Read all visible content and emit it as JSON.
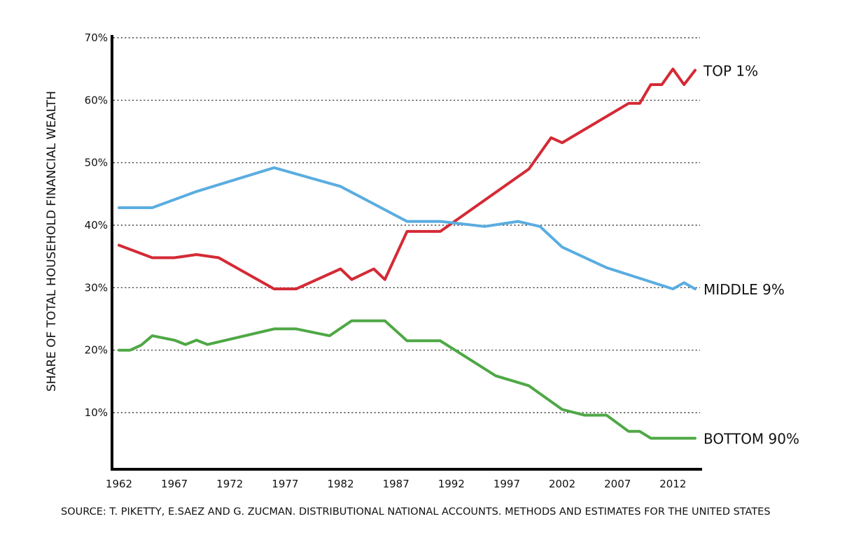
{
  "chart_data": {
    "type": "line",
    "title": "",
    "xlabel": "",
    "ylabel": "SHARE OF TOTAL HOUSEHOLD FINANCIAL WEALTH",
    "ylim": [
      0,
      70
    ],
    "xlim": [
      1962,
      2014
    ],
    "grid": true,
    "legend": "end-of-line labels",
    "y_ticks": [
      10,
      20,
      30,
      40,
      50,
      60,
      70
    ],
    "y_tick_labels": [
      "10%",
      "20%",
      "30%",
      "40%",
      "50%",
      "60%",
      "70%"
    ],
    "x_ticks": [
      1962,
      1967,
      1972,
      1977,
      1982,
      1987,
      1992,
      1997,
      2002,
      2007,
      2012
    ],
    "x_tick_labels": [
      "1962",
      "1967",
      "1972",
      "1977",
      "1982",
      "1987",
      "1992",
      "1997",
      "2002",
      "2007",
      "2012"
    ],
    "series": [
      {
        "name": "TOP 1%",
        "color": "#d42a35",
        "points": [
          [
            1962,
            36.8
          ],
          [
            1965,
            34.8
          ],
          [
            1967,
            34.8
          ],
          [
            1969,
            35.3
          ],
          [
            1971,
            34.8
          ],
          [
            1976,
            29.8
          ],
          [
            1978,
            29.8
          ],
          [
            1982,
            33.0
          ],
          [
            1983,
            31.3
          ],
          [
            1985,
            33.0
          ],
          [
            1986,
            31.3
          ],
          [
            1988,
            39.0
          ],
          [
            1991,
            39.0
          ],
          [
            1999,
            49.0
          ],
          [
            2001,
            54.0
          ],
          [
            2002,
            53.2
          ],
          [
            2008,
            59.5
          ],
          [
            2009,
            59.5
          ],
          [
            2010,
            62.5
          ],
          [
            2011,
            62.5
          ],
          [
            2012,
            65.0
          ],
          [
            2013,
            62.5
          ],
          [
            2014,
            64.8
          ]
        ]
      },
      {
        "name": "MIDDLE 9%",
        "color": "#5aade0",
        "points": [
          [
            1962,
            42.8
          ],
          [
            1965,
            42.8
          ],
          [
            1969,
            45.4
          ],
          [
            1976,
            49.2
          ],
          [
            1982,
            46.2
          ],
          [
            1988,
            40.6
          ],
          [
            1991,
            40.6
          ],
          [
            1995,
            39.8
          ],
          [
            1998,
            40.6
          ],
          [
            2000,
            39.8
          ],
          [
            2002,
            36.5
          ],
          [
            2006,
            33.2
          ],
          [
            2012,
            29.8
          ],
          [
            2013,
            30.8
          ],
          [
            2014,
            29.8
          ]
        ]
      },
      {
        "name": "BOTTOM 90%",
        "color": "#4ea845",
        "points": [
          [
            1962,
            20.0
          ],
          [
            1963,
            20.0
          ],
          [
            1964,
            20.8
          ],
          [
            1965,
            22.3
          ],
          [
            1967,
            21.6
          ],
          [
            1968,
            20.9
          ],
          [
            1969,
            21.6
          ],
          [
            1970,
            20.9
          ],
          [
            1976,
            23.4
          ],
          [
            1978,
            23.4
          ],
          [
            1981,
            22.3
          ],
          [
            1983,
            24.7
          ],
          [
            1986,
            24.7
          ],
          [
            1988,
            21.5
          ],
          [
            1991,
            21.5
          ],
          [
            1996,
            15.9
          ],
          [
            1999,
            14.3
          ],
          [
            2002,
            10.5
          ],
          [
            2004,
            9.6
          ],
          [
            2006,
            9.6
          ],
          [
            2008,
            7.0
          ],
          [
            2009,
            7.0
          ],
          [
            2010,
            5.9
          ],
          [
            2014,
            5.9
          ]
        ]
      }
    ],
    "source": "SOURCE: T. PIKETTY, E.SAEZ AND G. ZUCMAN. DISTRIBUTIONAL NATIONAL ACCOUNTS. METHODS AND ESTIMATES FOR THE UNITED STATES"
  }
}
